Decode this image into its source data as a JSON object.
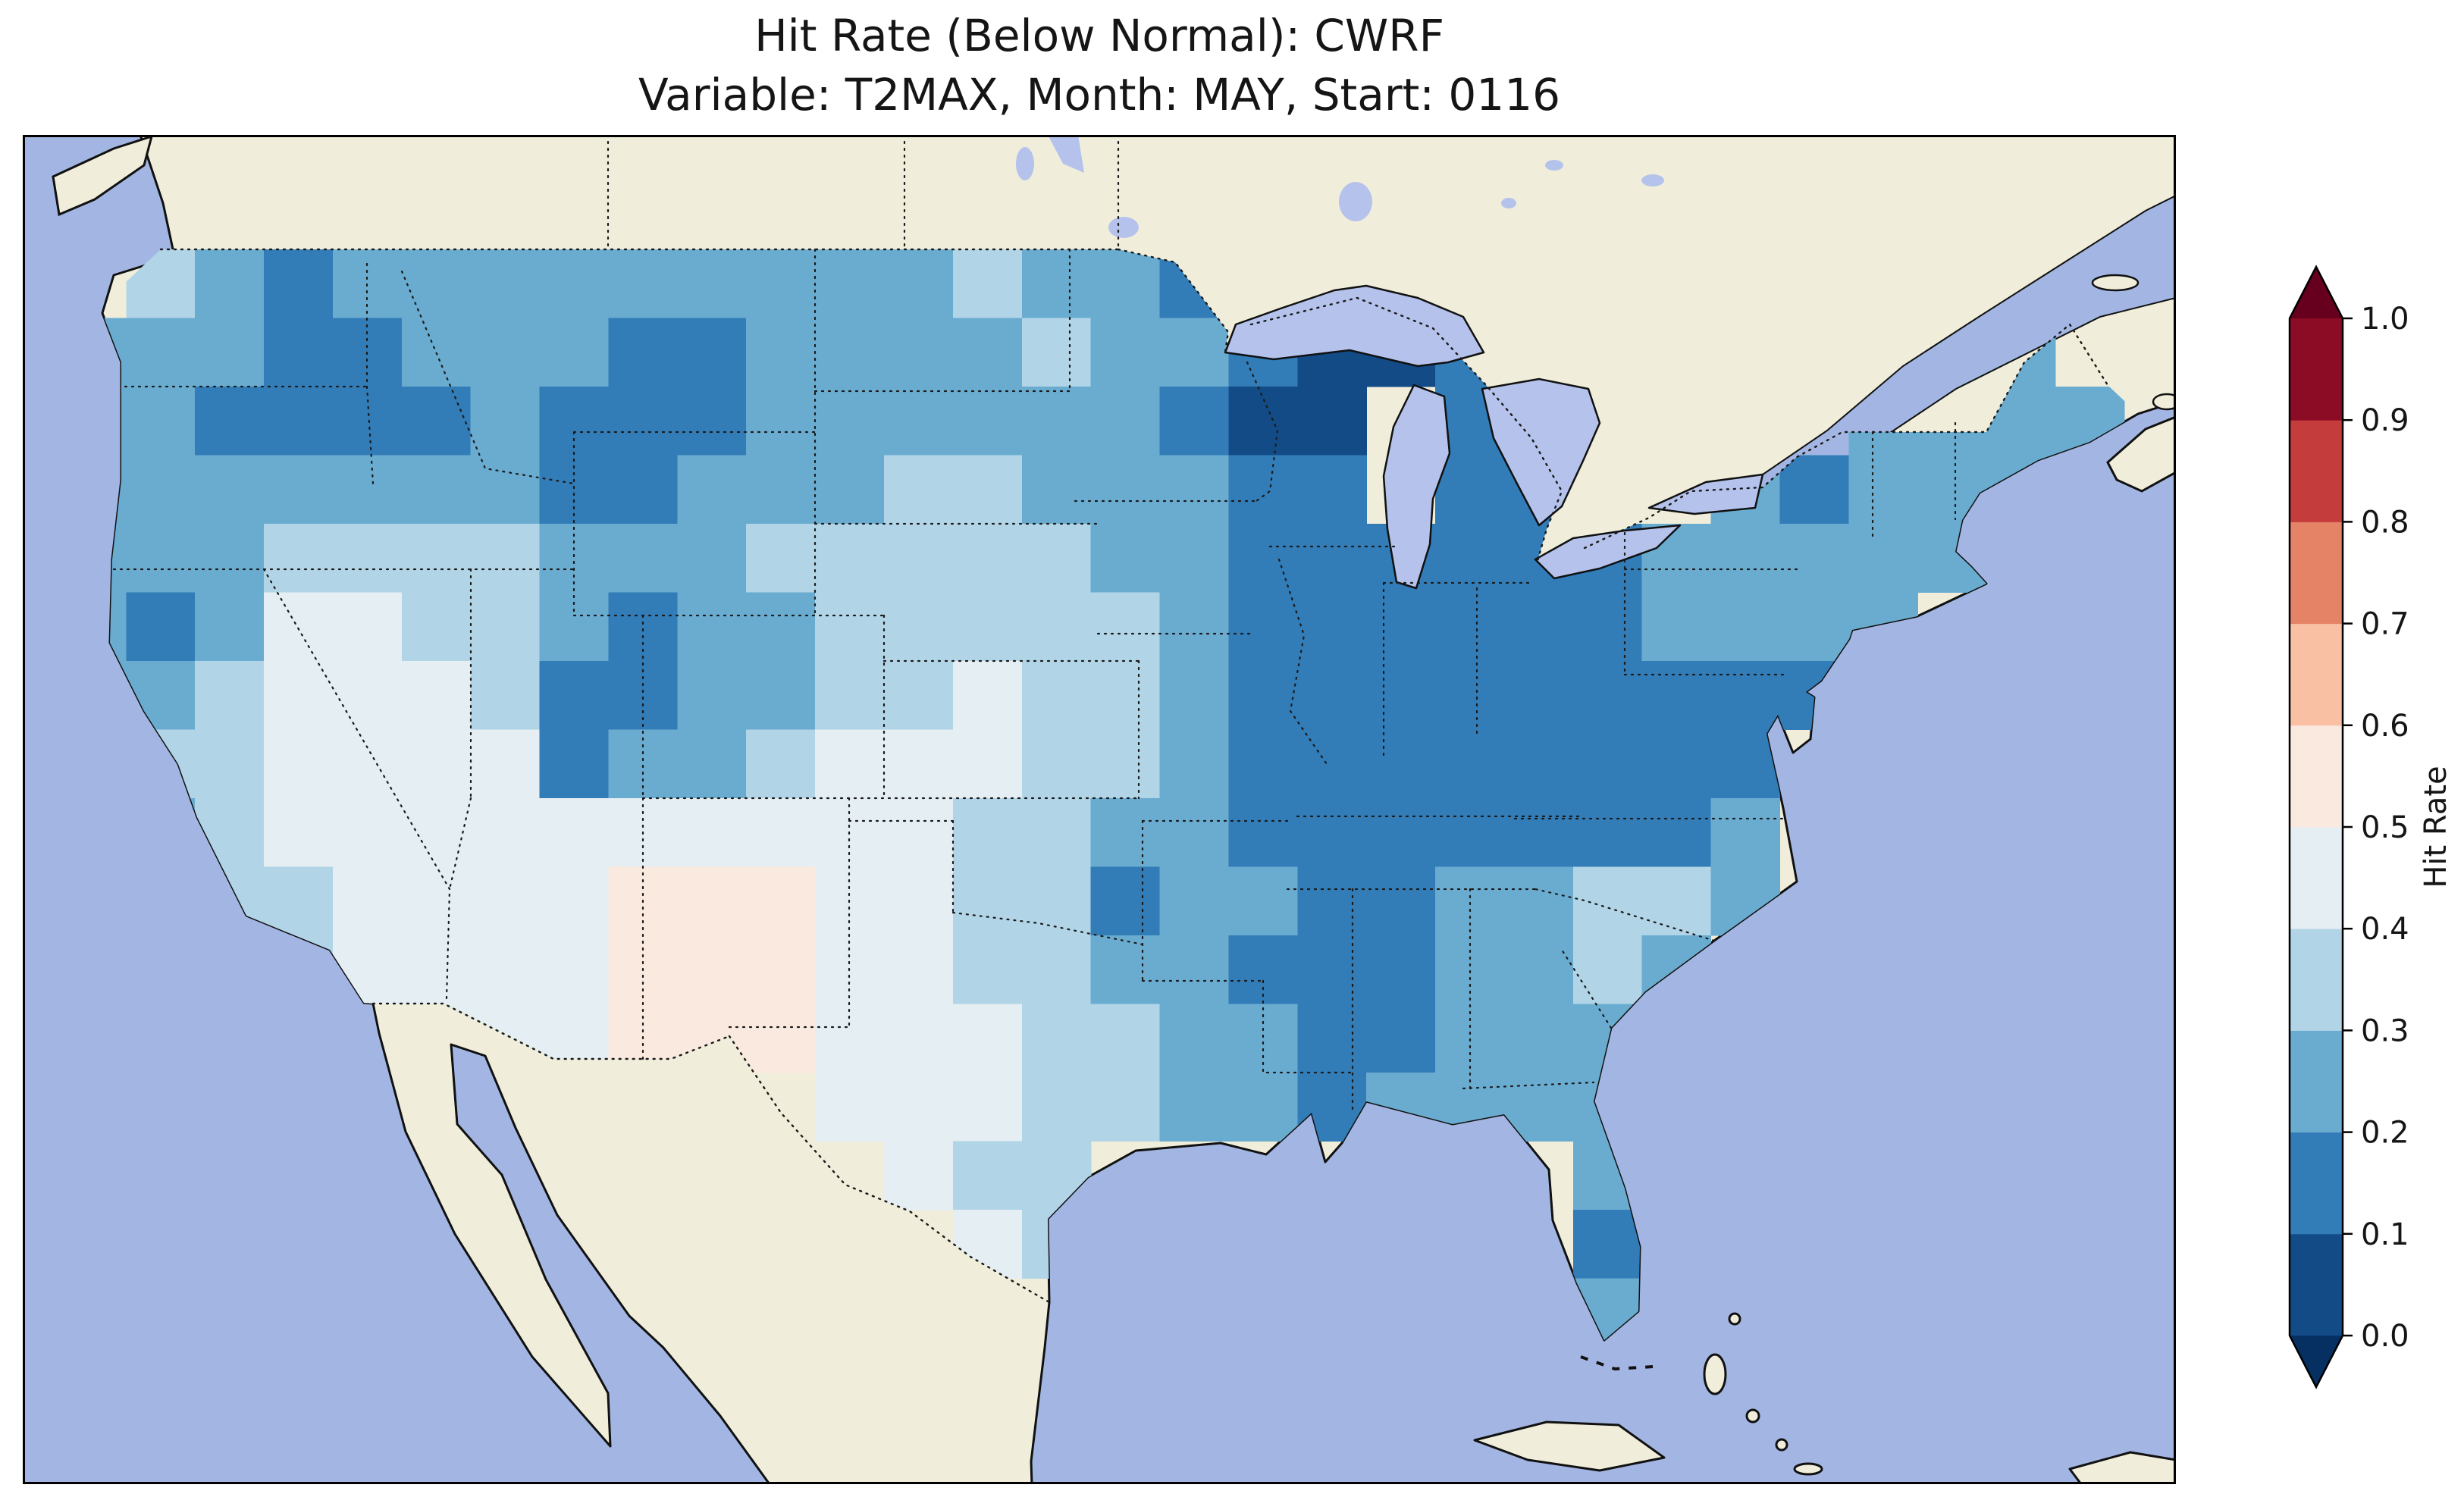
{
  "figure": {
    "title_line1": "Hit Rate (Below Normal): CWRF",
    "title_line2": "Variable: T2MAX, Month: MAY, Start: 0116"
  },
  "colorbar": {
    "label": "Hit Rate",
    "ticks": [
      "0.0",
      "0.1",
      "0.2",
      "0.3",
      "0.4",
      "0.5",
      "0.6",
      "0.7",
      "0.8",
      "0.9",
      "1.0"
    ],
    "bin_colors_low_to_high": [
      "#134b87",
      "#327cb7",
      "#6aacd0",
      "#b1d5e7",
      "#e4eef3",
      "#fae9df",
      "#f9c0a4",
      "#e58367",
      "#c43c3c",
      "#8c0c25"
    ],
    "under_arrow_color": "#053061",
    "over_arrow_color": "#67001f"
  },
  "map_palette": {
    "ocean": "#a3b6e3",
    "land": "#f0eedb",
    "lakes": "#b5c3ec",
    "coastline": "#111111",
    "border_dots": "#1a1a1a",
    "frame": "#000000"
  },
  "chart_data": {
    "type": "heatmap",
    "title": "Hit Rate (Below Normal): CWRF",
    "subtitle": "Variable: T2MAX, Month: MAY, Start: 0116",
    "model": "CWRF",
    "variable": "T2MAX",
    "month": "MAY",
    "start": "0116",
    "metric": "Hit Rate (Below Normal)",
    "legend_label": "Hit Rate",
    "colormap": "RdBu_r, 10 discrete bins from 0.0 to 1.0 with under/over extension arrows",
    "value_range": [
      0.0,
      1.0
    ],
    "region": "Continental United States (CONUS), plate-carree style map with beige land and periwinkle ocean",
    "grid": {
      "lon_west": -126,
      "lon_east": -66,
      "cell_deg_lon": 2,
      "lat_north": 50.5,
      "lat_south": 23.5,
      "cell_deg_lat": 1.5,
      "encoding": "Each row is a 1.5-degree latitude band from north to south; each character is a 2-degree longitude cell from west to east. Digit d means hit-rate bin [d/10,(d+1)/10). '.' means no data / outside CONUS.",
      "rows": [
        "..............................",
        ".32122222222232211............",
        "222112221122223221001......22.",
        "2211112111222222100.11....2222",
        "2222222112223322211.11..21222.",
        "2223333222333332211111122222..",
        "212443321223333321111112222...",
        "22344431122334332111111111....",
        "2334444122344433211111111.....",
        ".234444444444332211111112.....",
        "..33444455544331221122332.....",
        "...344445554433221112232......",
        ".....444555444332211222.......",
        "...........444332212222.......",
        "............433.......22......",
        ".............43.......12......",
        "......................2.......",
        ".............................."
      ]
    },
    "notable_features": [
      "Lowest hit rates (0.0-0.2, darkest blues) over Wisconsin, upper Michigan, the Great Lakes region, Ohio and Tennessee valleys, mid-Atlantic, and the Adirondacks",
      "Moderate 0.2-0.4 (medium blues) over the West Coast, northern Rockies, Montana, and the Gulf Coast states",
      "Pale 0.4-0.5 (near-white blue) over Kansas, Nevada, Arizona, Utah and west Texas",
      "Only above-0.5 cells (pale pink, 0.5-0.6) over central and southern New Mexico / far west Texas",
      "No values above about 0.6 anywhere on the map; red half of the colorbar unused"
    ]
  }
}
